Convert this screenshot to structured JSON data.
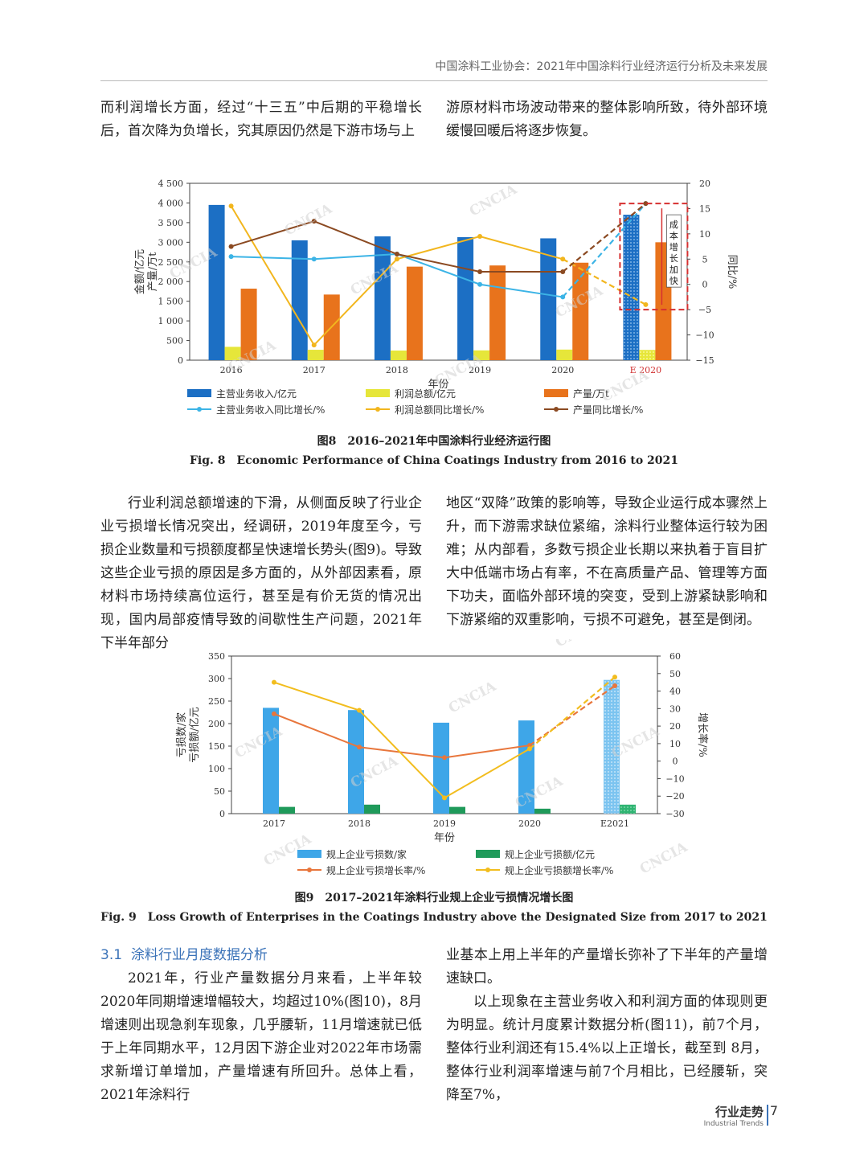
{
  "header": "中国涂料工业协会：2021年中国涂料行业经济运行分析及未来发展",
  "para1_left": "而利润增长方面，经过“十三五”中后期的平稳增长后，首次降为负增长，究其原因仍然是下游市场与上",
  "para1_right": "游原材料市场波动带来的整体影响所致，待外部环境缓慢回暖后将逐步恢复。",
  "para2_left": "行业利润总额增速的下滑，从侧面反映了行业企业亏损增长情况突出，经调研，2019年度至今，亏损企业数量和亏损额度都呈快速增长势头(图9)。导致这些企业亏损的原因是多方面的，从外部因素看，原材料市场持续高位运行，甚至是有价无货的情况出现，国内局部疫情导致的间歇性生产问题，2021年下半年部分",
  "para2_right": "地区“双降”政策的影响等，导致企业运行成本骤然上升，而下游需求缺位紧缩，涂料行业整体运行较为困难；从内部看，多数亏损企业长期以来执着于盲目扩大中低端市场占有率，不在高质量产品、管理等方面下功夫，面临外部环境的突变，受到上游紧缺影响和下游紧缩的双重影响，亏损不可避免，甚至是倒闭。",
  "section_num": "3.1",
  "section_title": "涂料行业月度数据分析",
  "para3_left": "2021年，行业产量数据分月来看，上半年较2020年同期增速增幅较大，均超过10%(图10)，8月增速则出现急刹车现象，几乎腰斩，11月增速就已低于上年同期水平，12月因下游企业对2022年市场需求新增订单增加，产量增速有所回升。总体上看，2021年涂料行",
  "para3_right_a": "业基本上用上半年的产量增长弥补了下半年的产量增速缺口。",
  "para3_right_b": "以上现象在主营业务收入和利润方面的体现则更为明显。统计月度累计数据分析(图11)，前7个月，整体行业利润还有15.4%以上正增长，截至到 8月，整体行业利润率增速与前7个月相比，已经腰斩，突降至7%，",
  "fig8_caption_cn": "图8　2016–2021年中国涂料行业经济运行图",
  "fig8_caption_en": "Fig. 8　Economic Performance of China Coatings Industry from 2016 to 2021",
  "fig9_caption_cn": "图9　2017–2021年涂料行业规上企业亏损情况增长图",
  "fig9_caption_en": "Fig. 9　Loss Growth of Enterprises in the Coatings Industry above the Designated Size from 2017 to 2021",
  "watermark": "CNCIA",
  "footer_title": "行业走势",
  "footer_sub": "Industrial Trends",
  "page_number": "7",
  "chart_data": [
    {
      "type": "bar",
      "categories": [
        "2016",
        "2017",
        "2018",
        "2019",
        "2020",
        "E 2020"
      ],
      "xlabel": "年份",
      "ylabel": "金额/亿元\n产量/万t",
      "y2label": "同比/%",
      "ylim": [
        0,
        4500
      ],
      "y2lim": [
        -15,
        20
      ],
      "yticks": [
        "0",
        "500",
        "1 000",
        "1 500",
        "2 000",
        "2 500",
        "3 000",
        "3 500",
        "4 000",
        "4 500"
      ],
      "y2ticks": [
        "−15",
        "−10",
        "−5",
        "0",
        "5",
        "10",
        "15",
        "20"
      ],
      "annotation": "成本增长加快",
      "colors": {
        "revenue": "#1c6fc4",
        "profit": "#e6e63a",
        "output": "#e8731c",
        "revenue_growth": "#3cb4e6",
        "profit_growth": "#f2b61e",
        "output_growth": "#8b4a22"
      },
      "bar_series": [
        {
          "name": "主营业务收入/亿元",
          "values": [
            3950,
            3050,
            3150,
            3130,
            3100,
            3700
          ]
        },
        {
          "name": "利润总额/亿元",
          "values": [
            340,
            265,
            245,
            250,
            270,
            260
          ]
        },
        {
          "name": "产量/万t",
          "values": [
            1820,
            1670,
            2380,
            2410,
            2480,
            3000
          ]
        }
      ],
      "line_series": [
        {
          "name": "主营业务收入同比增长/%",
          "values": [
            5.5,
            5,
            6,
            0,
            -2.5,
            16
          ]
        },
        {
          "name": "利润总额同比增长/%",
          "values": [
            15.5,
            -12,
            5,
            9.5,
            5,
            -4
          ]
        },
        {
          "name": "产量同比增长/%",
          "values": [
            7.5,
            12.5,
            6,
            2.5,
            2.5,
            16
          ]
        }
      ]
    },
    {
      "type": "bar",
      "categories": [
        "2017",
        "2018",
        "2019",
        "2020",
        "E2021"
      ],
      "xlabel": "年份",
      "ylabel": "亏损数/家\n亏损额/亿元",
      "y2label": "增长率/%",
      "ylim": [
        0,
        350
      ],
      "y2lim": [
        -30,
        60
      ],
      "yticks": [
        "0",
        "50",
        "100",
        "150",
        "200",
        "250",
        "300",
        "350"
      ],
      "y2ticks": [
        "−30",
        "−20",
        "−10",
        "0",
        "10",
        "20",
        "30",
        "40",
        "50",
        "60"
      ],
      "colors": {
        "loss_count": "#3ea6e8",
        "loss_amount": "#1f9a5a",
        "count_growth": "#e8763c",
        "amount_growth": "#f2bd1e"
      },
      "bar_series": [
        {
          "name": "规上企业亏损数/家",
          "values": [
            235,
            230,
            202,
            207,
            297
          ]
        },
        {
          "name": "规上企业亏损额/亿元",
          "values": [
            15,
            20,
            15,
            11,
            20
          ]
        }
      ],
      "line_series": [
        {
          "name": "规上企业亏损增长率/%",
          "values": [
            27,
            8,
            2,
            9,
            43
          ]
        },
        {
          "name": "规上企业亏损额增长率/%",
          "values": [
            45,
            29,
            -21,
            7,
            48
          ]
        }
      ]
    }
  ]
}
